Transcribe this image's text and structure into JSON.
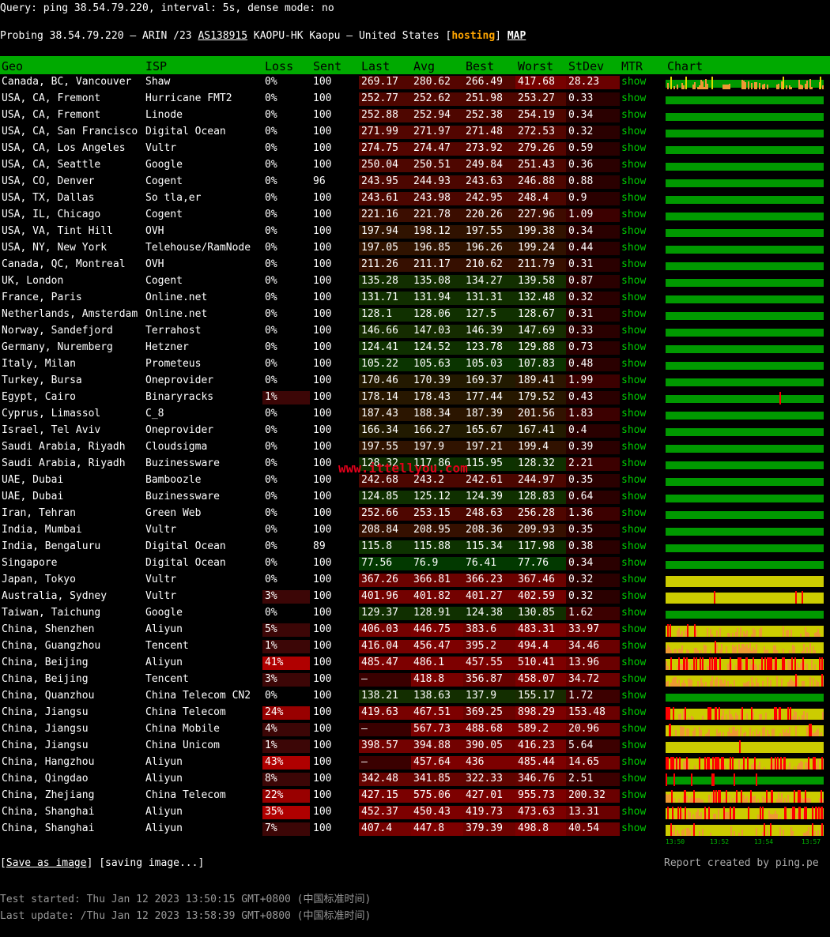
{
  "query": "Query: ping 38.54.79.220, interval: 5s, dense mode: no",
  "probe": {
    "prefix": "Probing 38.54.79.220 — ARIN /23 ",
    "asn": "AS138915",
    "middle": " KAOPU-HK Kaopu — United States [",
    "hosting": "hosting",
    "close": "] ",
    "map": "MAP"
  },
  "headers": [
    "Geo",
    "ISP",
    "Loss",
    "Sent",
    "Last",
    "Avg",
    "Best",
    "Worst",
    "StDev",
    "MTR",
    "Chart"
  ],
  "mtr_label": "show",
  "rows": [
    {
      "geo": "Canada, BC, Vancouver",
      "isp": "Shaw",
      "loss": "0%",
      "sent": "100",
      "last": "269.17",
      "avg": "280.62",
      "best": "266.49",
      "worst": "417.68",
      "std": "28.23"
    },
    {
      "geo": "USA, CA, Fremont",
      "isp": "Hurricane FMT2",
      "loss": "0%",
      "sent": "100",
      "last": "252.77",
      "avg": "252.62",
      "best": "251.98",
      "worst": "253.27",
      "std": "0.33"
    },
    {
      "geo": "USA, CA, Fremont",
      "isp": "Linode",
      "loss": "0%",
      "sent": "100",
      "last": "252.88",
      "avg": "252.94",
      "best": "252.38",
      "worst": "254.19",
      "std": "0.34"
    },
    {
      "geo": "USA, CA, San Francisco",
      "isp": "Digital Ocean",
      "loss": "0%",
      "sent": "100",
      "last": "271.99",
      "avg": "271.97",
      "best": "271.48",
      "worst": "272.53",
      "std": "0.32"
    },
    {
      "geo": "USA, CA, Los Angeles",
      "isp": "Vultr",
      "loss": "0%",
      "sent": "100",
      "last": "274.75",
      "avg": "274.47",
      "best": "273.92",
      "worst": "279.26",
      "std": "0.59"
    },
    {
      "geo": "USA, CA, Seattle",
      "isp": "Google",
      "loss": "0%",
      "sent": "100",
      "last": "250.04",
      "avg": "250.51",
      "best": "249.84",
      "worst": "251.43",
      "std": "0.36"
    },
    {
      "geo": "USA, CO, Denver",
      "isp": "Cogent",
      "loss": "0%",
      "sent": "96",
      "last": "243.95",
      "avg": "244.93",
      "best": "243.63",
      "worst": "246.88",
      "std": "0.88"
    },
    {
      "geo": "USA, TX, Dallas",
      "isp": "So tla,er",
      "loss": "0%",
      "sent": "100",
      "last": "243.61",
      "avg": "243.98",
      "best": "242.95",
      "worst": "248.4",
      "std": "0.9"
    },
    {
      "geo": "USA, IL, Chicago",
      "isp": "Cogent",
      "loss": "0%",
      "sent": "100",
      "last": "221.16",
      "avg": "221.78",
      "best": "220.26",
      "worst": "227.96",
      "std": "1.09"
    },
    {
      "geo": "USA, VA, Tint Hill",
      "isp": "OVH",
      "loss": "0%",
      "sent": "100",
      "last": "197.94",
      "avg": "198.12",
      "best": "197.55",
      "worst": "199.38",
      "std": "0.34"
    },
    {
      "geo": "USA, NY, New York",
      "isp": "Telehouse/RamNode",
      "loss": "0%",
      "sent": "100",
      "last": "197.05",
      "avg": "196.85",
      "best": "196.26",
      "worst": "199.24",
      "std": "0.44"
    },
    {
      "geo": "Canada, QC, Montreal",
      "isp": "OVH",
      "loss": "0%",
      "sent": "100",
      "last": "211.26",
      "avg": "211.17",
      "best": "210.62",
      "worst": "211.79",
      "std": "0.31"
    },
    {
      "geo": "UK, London",
      "isp": "Cogent",
      "loss": "0%",
      "sent": "100",
      "last": "135.28",
      "avg": "135.08",
      "best": "134.27",
      "worst": "139.58",
      "std": "0.87"
    },
    {
      "geo": "France, Paris",
      "isp": "Online.net",
      "loss": "0%",
      "sent": "100",
      "last": "131.71",
      "avg": "131.94",
      "best": "131.31",
      "worst": "132.48",
      "std": "0.32"
    },
    {
      "geo": "Netherlands, Amsterdam",
      "isp": "Online.net",
      "loss": "0%",
      "sent": "100",
      "last": "128.1",
      "avg": "128.06",
      "best": "127.5",
      "worst": "128.67",
      "std": "0.31"
    },
    {
      "geo": "Norway, Sandefjord",
      "isp": "Terrahost",
      "loss": "0%",
      "sent": "100",
      "last": "146.66",
      "avg": "147.03",
      "best": "146.39",
      "worst": "147.69",
      "std": "0.33"
    },
    {
      "geo": "Germany, Nuremberg",
      "isp": "Hetzner",
      "loss": "0%",
      "sent": "100",
      "last": "124.41",
      "avg": "124.52",
      "best": "123.78",
      "worst": "129.88",
      "std": "0.73"
    },
    {
      "geo": "Italy, Milan",
      "isp": "Prometeus",
      "loss": "0%",
      "sent": "100",
      "last": "105.22",
      "avg": "105.63",
      "best": "105.03",
      "worst": "107.83",
      "std": "0.48"
    },
    {
      "geo": "Turkey, Bursa",
      "isp": "Oneprovider",
      "loss": "0%",
      "sent": "100",
      "last": "170.46",
      "avg": "170.39",
      "best": "169.37",
      "worst": "189.41",
      "std": "1.99"
    },
    {
      "geo": "Egypt, Cairo",
      "isp": "Binaryracks",
      "loss": "1%",
      "sent": "100",
      "last": "178.14",
      "avg": "178.43",
      "best": "177.44",
      "worst": "179.52",
      "std": "0.43"
    },
    {
      "geo": "Cyprus, Limassol",
      "isp": "C_8",
      "loss": "0%",
      "sent": "100",
      "last": "187.43",
      "avg": "188.34",
      "best": "187.39",
      "worst": "201.56",
      "std": "1.83"
    },
    {
      "geo": "Israel, Tel Aviv",
      "isp": "Oneprovider",
      "loss": "0%",
      "sent": "100",
      "last": "166.34",
      "avg": "166.27",
      "best": "165.67",
      "worst": "167.41",
      "std": "0.4"
    },
    {
      "geo": "Saudi Arabia, Riyadh",
      "isp": "Cloudsigma",
      "loss": "0%",
      "sent": "100",
      "last": "197.55",
      "avg": "197.9",
      "best": "197.21",
      "worst": "199.4",
      "std": "0.39"
    },
    {
      "geo": "Saudi Arabia, Riyadh",
      "isp": "Buzinessware",
      "loss": "0%",
      "sent": "100",
      "last": "128.32",
      "avg": "117.86",
      "best": "115.95",
      "worst": "128.32",
      "std": "2.21"
    },
    {
      "geo": "UAE, Dubai",
      "isp": "Bamboozle",
      "loss": "0%",
      "sent": "100",
      "last": "242.68",
      "avg": "243.2",
      "best": "242.61",
      "worst": "244.97",
      "std": "0.35"
    },
    {
      "geo": "UAE, Dubai",
      "isp": "Buzinessware",
      "loss": "0%",
      "sent": "100",
      "last": "124.85",
      "avg": "125.12",
      "best": "124.39",
      "worst": "128.83",
      "std": "0.64"
    },
    {
      "geo": "Iran, Tehran",
      "isp": "Green Web",
      "loss": "0%",
      "sent": "100",
      "last": "252.66",
      "avg": "253.15",
      "best": "248.63",
      "worst": "256.28",
      "std": "1.36"
    },
    {
      "geo": "India, Mumbai",
      "isp": "Vultr",
      "loss": "0%",
      "sent": "100",
      "last": "208.84",
      "avg": "208.95",
      "best": "208.36",
      "worst": "209.93",
      "std": "0.35"
    },
    {
      "geo": "India, Bengaluru",
      "isp": "Digital Ocean",
      "loss": "0%",
      "sent": "89",
      "last": "115.8",
      "avg": "115.88",
      "best": "115.34",
      "worst": "117.98",
      "std": "0.38"
    },
    {
      "geo": "Singapore",
      "isp": "Digital Ocean",
      "loss": "0%",
      "sent": "100",
      "last": "77.56",
      "avg": "76.9",
      "best": "76.41",
      "worst": "77.76",
      "std": "0.34"
    },
    {
      "geo": "Japan, Tokyo",
      "isp": "Vultr",
      "loss": "0%",
      "sent": "100",
      "last": "367.26",
      "avg": "366.81",
      "best": "366.23",
      "worst": "367.46",
      "std": "0.32"
    },
    {
      "geo": "Australia, Sydney",
      "isp": "Vultr",
      "loss": "3%",
      "sent": "100",
      "last": "401.96",
      "avg": "401.82",
      "best": "401.27",
      "worst": "402.59",
      "std": "0.32"
    },
    {
      "geo": "Taiwan, Taichung",
      "isp": "Google",
      "loss": "0%",
      "sent": "100",
      "last": "129.37",
      "avg": "128.91",
      "best": "124.38",
      "worst": "130.85",
      "std": "1.62"
    },
    {
      "geo": "China, Shenzhen",
      "isp": "Aliyun",
      "loss": "5%",
      "sent": "100",
      "last": "406.03",
      "avg": "446.75",
      "best": "383.6",
      "worst": "483.31",
      "std": "33.97"
    },
    {
      "geo": "China, Guangzhou",
      "isp": "Tencent",
      "loss": "1%",
      "sent": "100",
      "last": "416.04",
      "avg": "456.47",
      "best": "395.2",
      "worst": "494.4",
      "std": "34.46"
    },
    {
      "geo": "China, Beijing",
      "isp": "Aliyun",
      "loss": "41%",
      "sent": "100",
      "last": "485.47",
      "avg": "486.1",
      "best": "457.55",
      "worst": "510.41",
      "std": "13.96"
    },
    {
      "geo": "China, Beijing",
      "isp": "Tencent",
      "loss": "3%",
      "sent": "100",
      "last": "–",
      "avg": "418.8",
      "best": "356.87",
      "worst": "458.07",
      "std": "34.72"
    },
    {
      "geo": "China, Quanzhou",
      "isp": "China Telecom CN2",
      "loss": "0%",
      "sent": "100",
      "last": "138.21",
      "avg": "138.63",
      "best": "137.9",
      "worst": "155.17",
      "std": "1.72"
    },
    {
      "geo": "China, Jiangsu",
      "isp": "China Telecom",
      "loss": "24%",
      "sent": "100",
      "last": "419.63",
      "avg": "467.51",
      "best": "369.25",
      "worst": "898.29",
      "std": "153.48"
    },
    {
      "geo": "China, Jiangsu",
      "isp": "China Mobile",
      "loss": "4%",
      "sent": "100",
      "last": "–",
      "avg": "567.73",
      "best": "488.68",
      "worst": "589.2",
      "std": "20.96"
    },
    {
      "geo": "China, Jiangsu",
      "isp": "China Unicom",
      "loss": "1%",
      "sent": "100",
      "last": "398.57",
      "avg": "394.88",
      "best": "390.05",
      "worst": "416.23",
      "std": "5.64"
    },
    {
      "geo": "China, Hangzhou",
      "isp": "Aliyun",
      "loss": "43%",
      "sent": "100",
      "last": "–",
      "avg": "457.64",
      "best": "436",
      "worst": "485.44",
      "std": "14.65"
    },
    {
      "geo": "China, Qingdao",
      "isp": "Aliyun",
      "loss": "8%",
      "sent": "100",
      "last": "342.48",
      "avg": "341.85",
      "best": "322.33",
      "worst": "346.76",
      "std": "2.51"
    },
    {
      "geo": "China, Zhejiang",
      "isp": "China Telecom",
      "loss": "22%",
      "sent": "100",
      "last": "427.15",
      "avg": "575.06",
      "best": "427.01",
      "worst": "955.73",
      "std": "200.32"
    },
    {
      "geo": "China, Shanghai",
      "isp": "Aliyun",
      "loss": "35%",
      "sent": "100",
      "last": "452.37",
      "avg": "450.43",
      "best": "419.73",
      "worst": "473.63",
      "std": "13.31"
    },
    {
      "geo": "China, Shanghai",
      "isp": "Aliyun",
      "loss": "7%",
      "sent": "100",
      "last": "407.4",
      "avg": "447.8",
      "best": "379.39",
      "worst": "498.8",
      "std": "40.54"
    }
  ],
  "axis_ticks": [
    "13:50",
    "13:52",
    "13:54",
    "13:57"
  ],
  "footer": {
    "save_link": "Save as image",
    "saving": " [saving image...]",
    "report": "Report created by ping.pe",
    "started": "Test started: Thu Jan 12 2023 13:50:15 GMT+0800 (中国标准时间)",
    "updated": "Last update: /Thu Jan 12 2023 13:58:39 GMT+0800 (中国标准时间)"
  },
  "watermark": "www.ittellyou.com",
  "colors": {
    "header_bg": "#00aa00",
    "link": "#00cc00",
    "hosting": "#ffa500",
    "chart_ok": "#009900",
    "chart_mid": "#cccc00",
    "chart_orange": "#ee9933",
    "chart_loss": "#ff0000"
  }
}
